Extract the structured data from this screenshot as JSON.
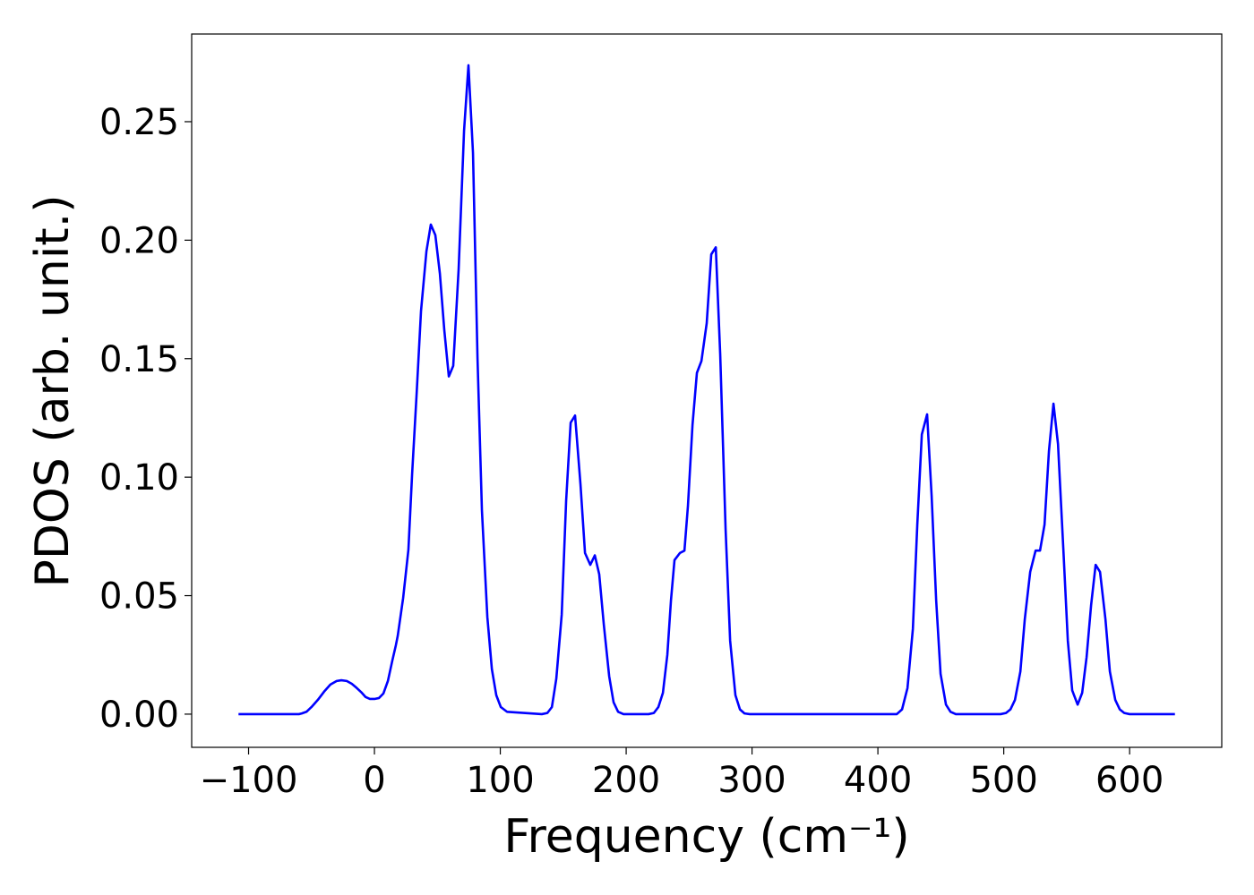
{
  "chart_data": {
    "type": "line",
    "xlabel": "Frequency (cm⁻¹)",
    "ylabel": "PDOS (arb. unit.)",
    "color": "#0000ff",
    "x": [
      -108,
      -60,
      -57.7,
      -54,
      -50,
      -45,
      -40,
      -35,
      -30,
      -26.3,
      -22,
      -18,
      -14,
      -10,
      -7,
      -3.6,
      0,
      3.6,
      7.1,
      10.7,
      14.2,
      17,
      18.5,
      22.8,
      27.0,
      29.9,
      33.5,
      37.0,
      41.3,
      44.8,
      48.4,
      52.0,
      55.5,
      59.1,
      62.6,
      66.9,
      71.2,
      74.7,
      78.3,
      81.9,
      85.4,
      89.7,
      93.3,
      96.8,
      100.4,
      105.3,
      133,
      137.4,
      141,
      144.5,
      148.8,
      152.3,
      155.9,
      159.4,
      163.7,
      167.3,
      171.5,
      175.1,
      178.6,
      182.2,
      186.5,
      190,
      193.6,
      197.9,
      217.8,
      222,
      225.6,
      229.2,
      232.7,
      235.6,
      238.4,
      242.7,
      246.3,
      249.1,
      252.7,
      256.2,
      259.8,
      264,
      267.6,
      271.2,
      274.7,
      279,
      282.6,
      286.8,
      290.4,
      294,
      298.2,
      415,
      419.2,
      423.5,
      427.8,
      431.3,
      434.9,
      439.1,
      442.7,
      446.3,
      449.8,
      454.1,
      457.7,
      461.9,
      497.5,
      501.8,
      505.3,
      508.9,
      513.2,
      516.7,
      521,
      525.3,
      528.8,
      532.4,
      535.9,
      539.5,
      543.1,
      547.3,
      550.9,
      554.4,
      558.7,
      562.3,
      565.8,
      569.4,
      573,
      576.5,
      580.8,
      584.3,
      588.6,
      592.2,
      595.7,
      600,
      636
    ],
    "values": [
      0,
      0,
      0.0003,
      0.001,
      0.003,
      0.006,
      0.0095,
      0.0125,
      0.014,
      0.0143,
      0.014,
      0.0128,
      0.011,
      0.009,
      0.0072,
      0.0064,
      0.0064,
      0.0068,
      0.0087,
      0.014,
      0.0226,
      0.029,
      0.033,
      0.049,
      0.0694,
      0.101,
      0.135,
      0.17,
      0.1953,
      0.2066,
      0.2021,
      0.1859,
      0.1621,
      0.1425,
      0.147,
      0.1878,
      0.2462,
      0.2738,
      0.2368,
      0.15,
      0.086,
      0.041,
      0.019,
      0.008,
      0.003,
      0.001,
      0,
      0.0005,
      0.003,
      0.015,
      0.042,
      0.09,
      0.123,
      0.126,
      0.097,
      0.068,
      0.063,
      0.067,
      0.059,
      0.038,
      0.016,
      0.005,
      0.001,
      0,
      0,
      0.0005,
      0.003,
      0.009,
      0.025,
      0.048,
      0.065,
      0.068,
      0.069,
      0.088,
      0.122,
      0.144,
      0.149,
      0.165,
      0.194,
      0.197,
      0.152,
      0.078,
      0.031,
      0.008,
      0.002,
      0.0003,
      0,
      0,
      0.002,
      0.011,
      0.036,
      0.08,
      0.118,
      0.1265,
      0.092,
      0.048,
      0.017,
      0.004,
      0.001,
      0,
      0,
      0.0005,
      0.002,
      0.006,
      0.018,
      0.04,
      0.06,
      0.069,
      0.069,
      0.08,
      0.111,
      0.131,
      0.114,
      0.07,
      0.031,
      0.01,
      0.004,
      0.009,
      0.024,
      0.046,
      0.063,
      0.06,
      0.04,
      0.018,
      0.006,
      0.002,
      0.0005,
      0,
      0
    ],
    "xlim": [
      -145.2,
      673.2
    ],
    "ylim": [
      -0.014,
      0.287
    ],
    "xticks": [
      {
        "value": -100,
        "label": "−100"
      },
      0,
      100,
      200,
      300,
      400,
      500,
      600
    ],
    "yticks": [
      {
        "value": 0,
        "label": "0.00"
      },
      0.05,
      {
        "value": 0.1,
        "label": "0.10"
      },
      0.15,
      {
        "value": 0.2,
        "label": "0.20"
      },
      0.25
    ],
    "grid": false
  }
}
